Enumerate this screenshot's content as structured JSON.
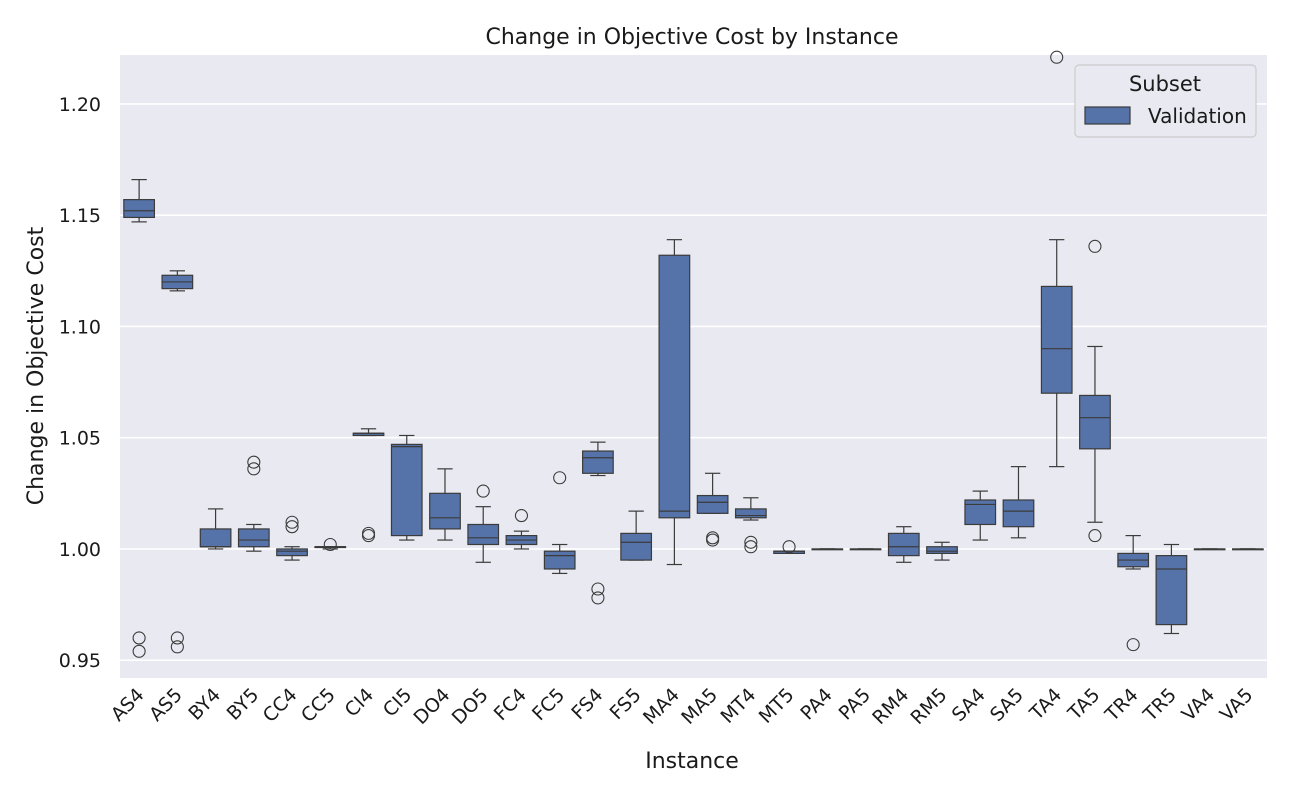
{
  "chart_data": {
    "type": "box",
    "title": "Change in Objective Cost by Instance",
    "xlabel": "Instance",
    "ylabel": "Change in Objective Cost",
    "ylim": [
      0.942,
      1.222
    ],
    "yticks": [
      "0.95",
      "1.00",
      "1.05",
      "1.10",
      "1.15",
      "1.20"
    ],
    "grid": true,
    "legend": {
      "title": "Subset",
      "entries": [
        "Validation"
      ],
      "placement": "top-right"
    },
    "colors": {
      "box": "#5573a8",
      "edge": "#3b3b3b",
      "background": "#e9e9f1",
      "grid": "#ffffff"
    },
    "series": [
      {
        "name": "Validation",
        "boxes": [
          {
            "category": "AS4",
            "whisker_low": 1.147,
            "q1": 1.149,
            "median": 1.152,
            "q3": 1.157,
            "whisker_high": 1.166,
            "outliers": [
              0.96,
              0.954
            ]
          },
          {
            "category": "AS5",
            "whisker_low": 1.116,
            "q1": 1.117,
            "median": 1.12,
            "q3": 1.123,
            "whisker_high": 1.125,
            "outliers": [
              0.96,
              0.956
            ]
          },
          {
            "category": "BY4",
            "whisker_low": 1.0,
            "q1": 1.001,
            "median": 1.001,
            "q3": 1.009,
            "whisker_high": 1.018,
            "outliers": []
          },
          {
            "category": "BY5",
            "whisker_low": 0.999,
            "q1": 1.001,
            "median": 1.004,
            "q3": 1.009,
            "whisker_high": 1.011,
            "outliers": [
              1.039,
              1.036
            ]
          },
          {
            "category": "CC4",
            "whisker_low": 0.995,
            "q1": 0.997,
            "median": 0.999,
            "q3": 1.0,
            "whisker_high": 1.001,
            "outliers": [
              1.012,
              1.01
            ]
          },
          {
            "category": "CC5",
            "whisker_low": 1.0,
            "q1": 1.001,
            "median": 1.001,
            "q3": 1.001,
            "whisker_high": 1.001,
            "outliers": [
              1.002
            ]
          },
          {
            "category": "CI4",
            "whisker_low": 1.051,
            "q1": 1.051,
            "median": 1.052,
            "q3": 1.052,
            "whisker_high": 1.054,
            "outliers": [
              1.007,
              1.006
            ]
          },
          {
            "category": "CI5",
            "whisker_low": 1.004,
            "q1": 1.006,
            "median": 1.046,
            "q3": 1.047,
            "whisker_high": 1.051,
            "outliers": []
          },
          {
            "category": "DO4",
            "whisker_low": 1.004,
            "q1": 1.009,
            "median": 1.014,
            "q3": 1.025,
            "whisker_high": 1.036,
            "outliers": []
          },
          {
            "category": "DO5",
            "whisker_low": 0.994,
            "q1": 1.002,
            "median": 1.005,
            "q3": 1.011,
            "whisker_high": 1.019,
            "outliers": [
              1.026
            ]
          },
          {
            "category": "FC4",
            "whisker_low": 1.0,
            "q1": 1.002,
            "median": 1.004,
            "q3": 1.006,
            "whisker_high": 1.008,
            "outliers": [
              1.015
            ]
          },
          {
            "category": "FC5",
            "whisker_low": 0.989,
            "q1": 0.991,
            "median": 0.997,
            "q3": 0.999,
            "whisker_high": 1.002,
            "outliers": [
              1.032
            ]
          },
          {
            "category": "FS4",
            "whisker_low": 1.033,
            "q1": 1.034,
            "median": 1.041,
            "q3": 1.044,
            "whisker_high": 1.048,
            "outliers": [
              0.982,
              0.978
            ]
          },
          {
            "category": "FS5",
            "whisker_low": 0.995,
            "q1": 0.995,
            "median": 1.003,
            "q3": 1.007,
            "whisker_high": 1.017,
            "outliers": []
          },
          {
            "category": "MA4",
            "whisker_low": 0.993,
            "q1": 1.014,
            "median": 1.017,
            "q3": 1.132,
            "whisker_high": 1.139,
            "outliers": []
          },
          {
            "category": "MA5",
            "whisker_low": 1.016,
            "q1": 1.016,
            "median": 1.021,
            "q3": 1.024,
            "whisker_high": 1.034,
            "outliers": [
              1.005,
              1.004
            ]
          },
          {
            "category": "MT4",
            "whisker_low": 1.013,
            "q1": 1.014,
            "median": 1.015,
            "q3": 1.018,
            "whisker_high": 1.023,
            "outliers": [
              1.003,
              1.001
            ]
          },
          {
            "category": "MT5",
            "whisker_low": 0.998,
            "q1": 0.998,
            "median": 0.999,
            "q3": 0.999,
            "whisker_high": 0.999,
            "outliers": [
              1.001
            ]
          },
          {
            "category": "PA4",
            "whisker_low": 1.0,
            "q1": 1.0,
            "median": 1.0,
            "q3": 1.0,
            "whisker_high": 1.0,
            "outliers": []
          },
          {
            "category": "PA5",
            "whisker_low": 1.0,
            "q1": 1.0,
            "median": 1.0,
            "q3": 1.0,
            "whisker_high": 1.0,
            "outliers": []
          },
          {
            "category": "RM4",
            "whisker_low": 0.994,
            "q1": 0.997,
            "median": 1.001,
            "q3": 1.007,
            "whisker_high": 1.01,
            "outliers": []
          },
          {
            "category": "RM5",
            "whisker_low": 0.995,
            "q1": 0.998,
            "median": 0.999,
            "q3": 1.001,
            "whisker_high": 1.003,
            "outliers": []
          },
          {
            "category": "SA4",
            "whisker_low": 1.004,
            "q1": 1.011,
            "median": 1.02,
            "q3": 1.022,
            "whisker_high": 1.026,
            "outliers": []
          },
          {
            "category": "SA5",
            "whisker_low": 1.005,
            "q1": 1.01,
            "median": 1.017,
            "q3": 1.022,
            "whisker_high": 1.037,
            "outliers": []
          },
          {
            "category": "TA4",
            "whisker_low": 1.037,
            "q1": 1.07,
            "median": 1.09,
            "q3": 1.118,
            "whisker_high": 1.139,
            "outliers": [
              1.221
            ]
          },
          {
            "category": "TA5",
            "whisker_low": 1.012,
            "q1": 1.045,
            "median": 1.059,
            "q3": 1.069,
            "whisker_high": 1.091,
            "outliers": [
              1.136,
              1.006
            ]
          },
          {
            "category": "TR4",
            "whisker_low": 0.991,
            "q1": 0.992,
            "median": 0.995,
            "q3": 0.998,
            "whisker_high": 1.006,
            "outliers": [
              0.957
            ]
          },
          {
            "category": "TR5",
            "whisker_low": 0.962,
            "q1": 0.966,
            "median": 0.991,
            "q3": 0.997,
            "whisker_high": 1.002,
            "outliers": []
          },
          {
            "category": "VA4",
            "whisker_low": 1.0,
            "q1": 1.0,
            "median": 1.0,
            "q3": 1.0,
            "whisker_high": 1.0,
            "outliers": []
          },
          {
            "category": "VA5",
            "whisker_low": 1.0,
            "q1": 1.0,
            "median": 1.0,
            "q3": 1.0,
            "whisker_high": 1.0,
            "outliers": []
          }
        ]
      }
    ]
  }
}
